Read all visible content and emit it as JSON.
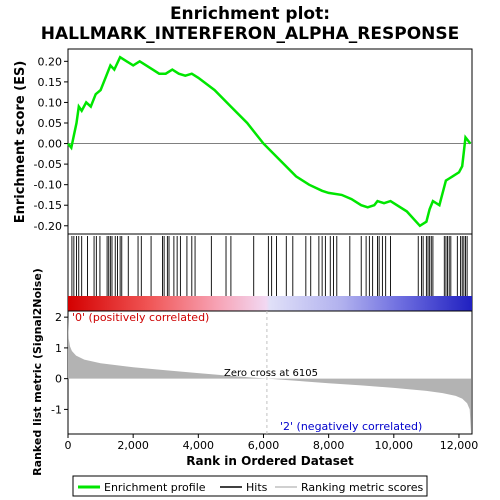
{
  "title_line1": "Enrichment plot:",
  "title_line2": "HALLMARK_INTERFERON_ALPHA_RESPONSE",
  "colors": {
    "es_line": "#00e600",
    "hits": "#000000",
    "metric_fill": "#b3b3b3",
    "positive_label": "#cc0000",
    "negative_label": "#0000cc",
    "zero_line": "#808080"
  },
  "chart_data": [
    {
      "type": "line",
      "panel": "enrichment",
      "ylabel": "Enrichment score (ES)",
      "ylim": [
        -0.22,
        0.23
      ],
      "xlim": [
        0,
        12400
      ],
      "yticks": [
        "0.20",
        "0.15",
        "0.10",
        "0.05",
        "0.00",
        "-0.05",
        "-0.10",
        "-0.15",
        "-0.20"
      ],
      "ytick_values": [
        0.2,
        0.15,
        0.1,
        0.05,
        0.0,
        -0.05,
        -0.1,
        -0.15,
        -0.2
      ],
      "series": [
        {
          "name": "Enrichment profile",
          "x": [
            0,
            100,
            180,
            260,
            330,
            420,
            560,
            700,
            850,
            1000,
            1150,
            1300,
            1420,
            1600,
            1800,
            2000,
            2200,
            2400,
            2600,
            2800,
            3000,
            3200,
            3400,
            3600,
            3800,
            4000,
            4500,
            5000,
            5500,
            6000,
            6500,
            7000,
            7400,
            7800,
            8000,
            8400,
            8700,
            9000,
            9200,
            9400,
            9500,
            9700,
            9900,
            10000,
            10400,
            10800,
            11000,
            11100,
            11200,
            11400,
            11600,
            11700,
            11800,
            12000,
            12100,
            12200,
            12350
          ],
          "y": [
            0.0,
            -0.01,
            0.02,
            0.05,
            0.09,
            0.08,
            0.1,
            0.09,
            0.12,
            0.13,
            0.16,
            0.19,
            0.18,
            0.21,
            0.2,
            0.19,
            0.2,
            0.19,
            0.18,
            0.17,
            0.17,
            0.18,
            0.17,
            0.165,
            0.17,
            0.16,
            0.13,
            0.09,
            0.05,
            0.0,
            -0.04,
            -0.08,
            -0.1,
            -0.115,
            -0.12,
            -0.125,
            -0.135,
            -0.15,
            -0.155,
            -0.15,
            -0.14,
            -0.145,
            -0.14,
            -0.145,
            -0.165,
            -0.2,
            -0.19,
            -0.16,
            -0.14,
            -0.15,
            -0.09,
            -0.085,
            -0.08,
            -0.07,
            -0.055,
            0.015,
            0.0
          ]
        }
      ]
    },
    {
      "type": "scatter",
      "panel": "hits",
      "series": [
        {
          "name": "Hits",
          "x": [
            120,
            180,
            260,
            330,
            420,
            600,
            800,
            870,
            980,
            1200,
            1250,
            1300,
            1350,
            1450,
            1520,
            1600,
            1650,
            1850,
            2150,
            2250,
            2550,
            2900,
            2950,
            3050,
            3100,
            3250,
            3350,
            3450,
            3650,
            3800,
            3900,
            4400,
            4850,
            5000,
            5700,
            6150,
            6250,
            6400,
            6700,
            6900,
            7300,
            7450,
            7700,
            7800,
            7900,
            8050,
            8150,
            8250,
            8650,
            9000,
            9150,
            9250,
            9350,
            9500,
            9550,
            9650,
            9750,
            9900,
            10750,
            10850,
            10900,
            11000,
            11050,
            11100,
            11150,
            11200,
            11550,
            11600,
            11650,
            11700,
            11750,
            11950,
            12050,
            12100,
            12150,
            12200,
            12250
          ]
        }
      ]
    },
    {
      "type": "area",
      "panel": "ranked_metric",
      "ylabel": "Ranked list metric (Signal2Noise)",
      "xlabel": "Rank in Ordered Dataset",
      "ylim": [
        -1.8,
        2.2
      ],
      "xlim": [
        0,
        12400
      ],
      "xticks": [
        "0",
        "2,000",
        "4,000",
        "6,000",
        "8,000",
        "10,000",
        "12,000"
      ],
      "xtick_values": [
        0,
        2000,
        4000,
        6000,
        8000,
        10000,
        12000
      ],
      "yticks": [
        "2",
        "1",
        "0",
        "-1"
      ],
      "ytick_values": [
        2,
        1,
        0,
        -1
      ],
      "series": [
        {
          "name": "Ranking metric scores",
          "x": [
            0,
            20,
            60,
            120,
            250,
            500,
            1000,
            2000,
            3000,
            4000,
            5000,
            6105,
            7000,
            8000,
            9000,
            10000,
            11000,
            11500,
            11900,
            12100,
            12250,
            12330,
            12370
          ],
          "y": [
            2.05,
            1.3,
            1.05,
            0.9,
            0.75,
            0.62,
            0.5,
            0.37,
            0.27,
            0.18,
            0.09,
            0.0,
            -0.07,
            -0.15,
            -0.22,
            -0.3,
            -0.4,
            -0.47,
            -0.56,
            -0.65,
            -0.8,
            -1.0,
            -1.75
          ]
        }
      ]
    }
  ],
  "annotations": {
    "zero_cross": "Zero cross at 6105",
    "positive": "'0' (positively correlated)",
    "negative": "'2' (negatively correlated)"
  },
  "zero_cross_rank": 6105,
  "legend": {
    "items": [
      {
        "label": "Enrichment profile",
        "kind": "line-green"
      },
      {
        "label": "Hits",
        "kind": "line-black"
      },
      {
        "label": "Ranking metric scores",
        "kind": "line-gray"
      }
    ]
  }
}
